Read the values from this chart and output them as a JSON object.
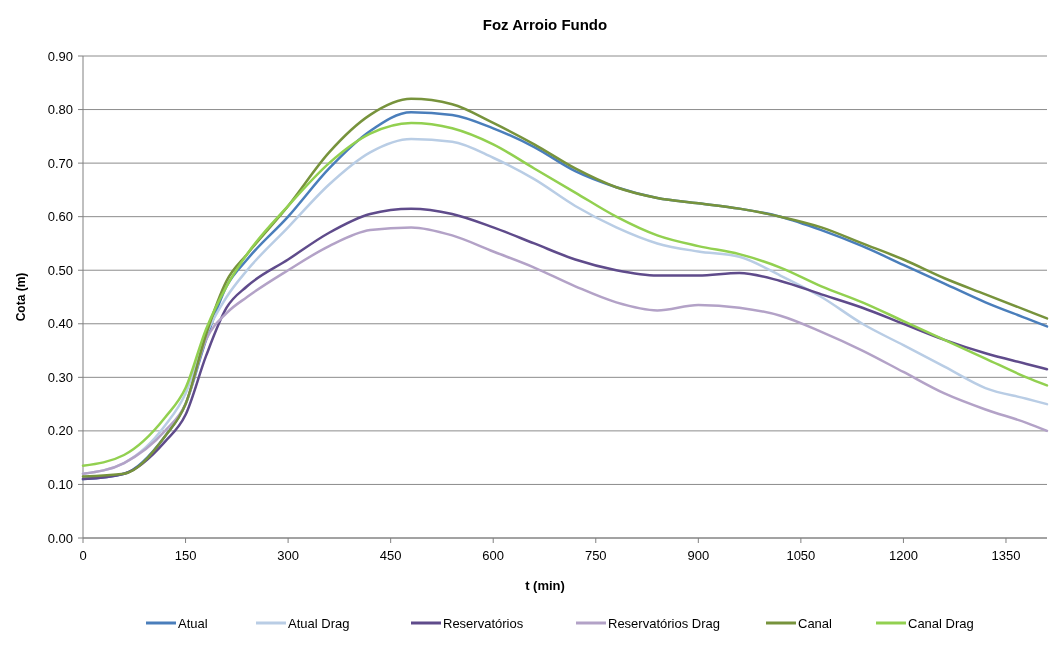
{
  "chart_data": {
    "type": "line",
    "title": "Foz Arroio Fundo",
    "xlabel": "t (min)",
    "ylabel": "Cota (m)",
    "x": [
      0,
      60,
      120,
      150,
      180,
      210,
      240,
      300,
      360,
      420,
      480,
      540,
      600,
      660,
      720,
      780,
      840,
      900,
      960,
      1020,
      1080,
      1140,
      1200,
      1260,
      1320,
      1380,
      1410
    ],
    "series": [
      {
        "name": "Atual",
        "color": "#4a7ebb",
        "values": [
          0.11,
          0.12,
          0.19,
          0.25,
          0.37,
          0.47,
          0.52,
          0.6,
          0.69,
          0.76,
          0.795,
          0.79,
          0.765,
          0.73,
          0.685,
          0.655,
          0.635,
          0.625,
          0.615,
          0.6,
          0.575,
          0.545,
          0.51,
          0.475,
          0.44,
          0.41,
          0.395
        ]
      },
      {
        "name": "Atual Drag",
        "color": "#b9cde5",
        "values": [
          0.12,
          0.14,
          0.21,
          0.27,
          0.38,
          0.45,
          0.5,
          0.58,
          0.66,
          0.72,
          0.745,
          0.74,
          0.71,
          0.67,
          0.62,
          0.58,
          0.55,
          0.535,
          0.525,
          0.49,
          0.45,
          0.4,
          0.36,
          0.32,
          0.28,
          0.26,
          0.25
        ]
      },
      {
        "name": "Reservatórios",
        "color": "#5f4b8b",
        "values": [
          0.11,
          0.12,
          0.18,
          0.23,
          0.34,
          0.43,
          0.47,
          0.52,
          0.57,
          0.605,
          0.615,
          0.605,
          0.58,
          0.55,
          0.52,
          0.5,
          0.49,
          0.49,
          0.495,
          0.48,
          0.455,
          0.43,
          0.4,
          0.37,
          0.345,
          0.325,
          0.315
        ]
      },
      {
        "name": "Reservatórios Drag",
        "color": "#b3a2c7",
        "values": [
          0.12,
          0.14,
          0.2,
          0.25,
          0.37,
          0.42,
          0.45,
          0.5,
          0.545,
          0.575,
          0.58,
          0.565,
          0.535,
          0.505,
          0.47,
          0.44,
          0.425,
          0.435,
          0.43,
          0.415,
          0.385,
          0.35,
          0.31,
          0.27,
          0.24,
          0.215,
          0.2
        ]
      },
      {
        "name": "Canal",
        "color": "#77933c",
        "values": [
          0.115,
          0.12,
          0.19,
          0.25,
          0.38,
          0.48,
          0.53,
          0.62,
          0.72,
          0.79,
          0.82,
          0.81,
          0.775,
          0.735,
          0.69,
          0.655,
          0.635,
          0.625,
          0.615,
          0.6,
          0.58,
          0.55,
          0.52,
          0.485,
          0.455,
          0.425,
          0.41
        ]
      },
      {
        "name": "Canal Drag",
        "color": "#92d050",
        "values": [
          0.135,
          0.155,
          0.225,
          0.28,
          0.39,
          0.47,
          0.53,
          0.62,
          0.7,
          0.755,
          0.775,
          0.765,
          0.735,
          0.69,
          0.645,
          0.6,
          0.565,
          0.545,
          0.53,
          0.505,
          0.47,
          0.44,
          0.405,
          0.37,
          0.335,
          0.3,
          0.285
        ]
      }
    ],
    "xlim": [
      0,
      1410
    ],
    "xticks": [
      0,
      150,
      300,
      450,
      600,
      750,
      900,
      1050,
      1200,
      1350
    ],
    "ylim": [
      0,
      0.9
    ],
    "yticks": [
      {
        "value": 0,
        "label": "0.00"
      },
      {
        "value": 0.1,
        "label": "0.10"
      },
      {
        "value": 0.2,
        "label": "0.20"
      },
      {
        "value": 0.3,
        "label": "0.30"
      },
      {
        "value": 0.4,
        "label": "0.40"
      },
      {
        "value": 0.5,
        "label": "0.50"
      },
      {
        "value": 0.6,
        "label": "0.60"
      },
      {
        "value": 0.7,
        "label": "0.70"
      },
      {
        "value": 0.8,
        "label": "0.80"
      },
      {
        "value": 0.9,
        "label": "0.90"
      }
    ],
    "grid": "y",
    "legend": "bottom",
    "marker": "none",
    "line_style": "solid"
  }
}
